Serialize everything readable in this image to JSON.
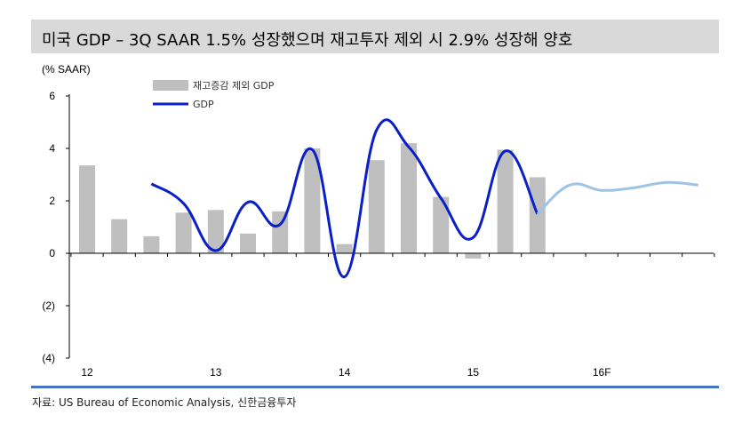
{
  "title": "미국 GDP – 3Q SAAR 1.5% 성장했으며 재고투자 제외 시 2.9% 성장해 양호",
  "source": "자료: US Bureau of Economic Analysis, 신한금융투자",
  "colors": {
    "bar": "#bfbfbf",
    "line_actual": "#0a1fc7",
    "line_forecast": "#9dc3e6",
    "title_bg": "#d9d9d9",
    "rule": "#4472c4"
  },
  "chart_data": {
    "type": "bar",
    "ylabel": "(% SAAR)",
    "ylim": [
      -4,
      6
    ],
    "yticks": [
      6,
      4,
      2,
      0,
      -2,
      -4
    ],
    "ytick_labels": [
      "6",
      "4",
      "2",
      "0",
      "(2)",
      "(4)"
    ],
    "x_labels": [
      "12",
      "13",
      "14",
      "15",
      "16F"
    ],
    "x_label_quarter_index": [
      0,
      4,
      8,
      12,
      16
    ],
    "legend": [
      "재고증감 제외 GDP",
      "GDP"
    ],
    "series": [
      {
        "name": "재고증감 제외 GDP",
        "kind": "bar",
        "values": [
          3.35,
          1.3,
          0.65,
          1.55,
          1.65,
          0.75,
          1.6,
          4.0,
          0.35,
          3.55,
          4.2,
          2.15,
          -0.2,
          3.95,
          2.9
        ]
      },
      {
        "name": "GDP",
        "kind": "line",
        "values": [
          2.65,
          1.9,
          0.1,
          1.95,
          1.1,
          3.95,
          -0.9,
          4.7,
          4.05,
          2.1,
          0.6,
          3.9,
          1.5
        ]
      },
      {
        "kind": "line-forecast",
        "values": [
          1.5,
          2.6,
          2.4,
          2.5,
          2.7,
          2.6
        ]
      }
    ]
  }
}
